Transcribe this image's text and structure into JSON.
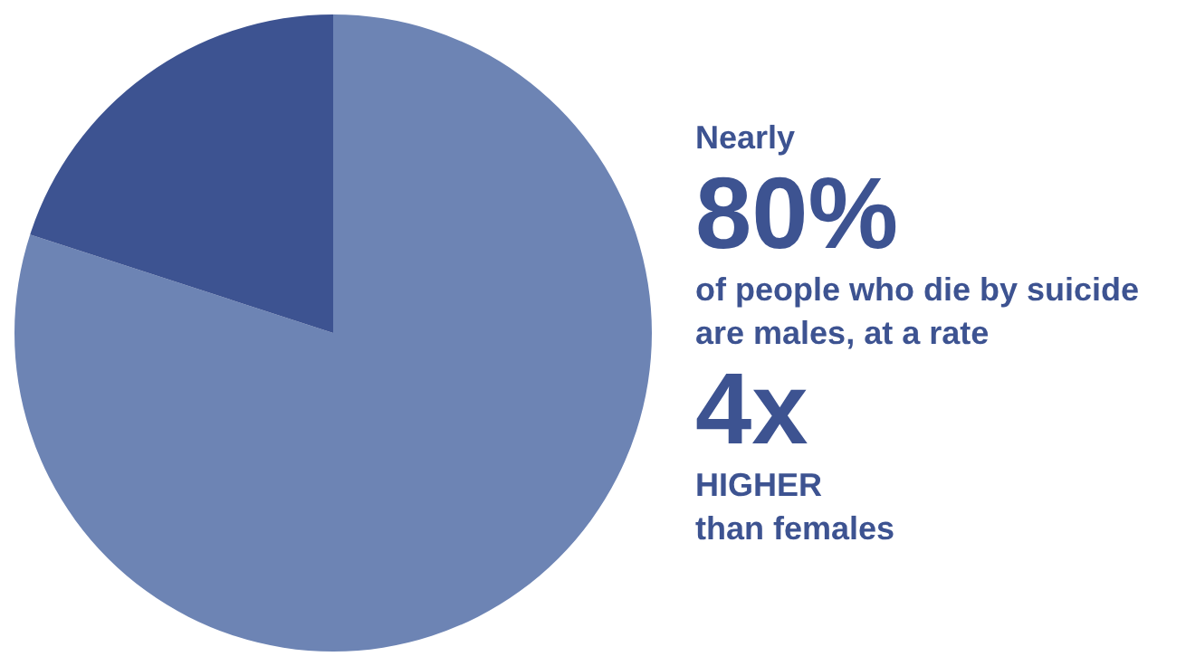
{
  "chart_data": {
    "type": "pie",
    "categories": [
      null,
      null
    ],
    "values": [
      80,
      20
    ],
    "colors": [
      "#6d84b4",
      "#3d5391"
    ],
    "legend": false,
    "annotations": [
      "Nearly",
      "80%",
      "of people who die by suicide are males, at a rate",
      "4x",
      "HIGHER",
      "than females"
    ]
  }
}
